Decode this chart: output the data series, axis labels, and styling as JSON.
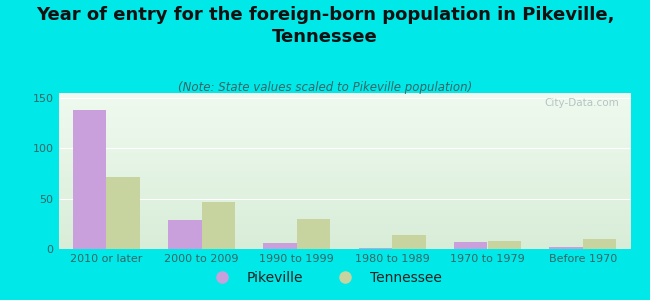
{
  "title": "Year of entry for the foreign-born population in Pikeville,\nTennessee",
  "subtitle": "(Note: State values scaled to Pikeville population)",
  "categories": [
    "2010 or later",
    "2000 to 2009",
    "1990 to 1999",
    "1980 to 1989",
    "1970 to 1979",
    "Before 1970"
  ],
  "pikeville_values": [
    138,
    29,
    6,
    1,
    7,
    2
  ],
  "tennessee_values": [
    72,
    47,
    30,
    14,
    8,
    10
  ],
  "pikeville_color": "#c9a0dc",
  "tennessee_color": "#c8d4a0",
  "background_color": "#00e8e8",
  "ylim": [
    0,
    155
  ],
  "yticks": [
    0,
    50,
    100,
    150
  ],
  "bar_width": 0.35,
  "title_fontsize": 13,
  "subtitle_fontsize": 8.5,
  "legend_fontsize": 10,
  "tick_fontsize": 8,
  "watermark": "City-Data.com"
}
